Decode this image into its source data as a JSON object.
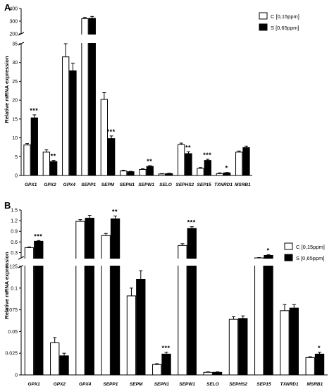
{
  "chart_data": [
    {
      "type": "bar",
      "panel_label": "A",
      "ylabel": "Relative mRNA expression",
      "categories": [
        "GPX1",
        "GPX2",
        "GPX4",
        "SEPP1",
        "SEPM",
        "SEPN1",
        "SEPW1",
        "SELO",
        "SEPHS2",
        "SEP15",
        "TXNRD1",
        "MSRB1"
      ],
      "series": [
        {
          "name": "C [0,15ppm]",
          "color": "#ffffff",
          "values": [
            8.1,
            6.2,
            31.5,
            320,
            20.2,
            1.2,
            1.6,
            0.4,
            8.2,
            1.9,
            0.5,
            6.2
          ],
          "errors": [
            0.4,
            0.6,
            3.5,
            10,
            1.8,
            0.2,
            0.2,
            0.1,
            0.4,
            0.2,
            0.2,
            0.3
          ]
        },
        {
          "name": "S [0,65ppm]",
          "color": "#000000",
          "values": [
            15.3,
            3.7,
            27.8,
            322,
            9.8,
            1.0,
            2.4,
            0.5,
            5.8,
            4.0,
            0.7,
            7.4
          ],
          "errors": [
            0.8,
            0.3,
            2.0,
            15,
            0.7,
            0.1,
            0.2,
            0.1,
            0.5,
            0.3,
            0.1,
            0.4
          ]
        }
      ],
      "significance": [
        "***",
        "**",
        "",
        "",
        "***",
        "",
        "**",
        "",
        "**",
        "***",
        "*",
        ""
      ],
      "axis_segments": [
        {
          "range": [
            0,
            35
          ],
          "ticks": [
            0,
            5,
            10,
            15,
            20,
            25,
            30,
            35
          ]
        },
        {
          "range": [
            200,
            400
          ],
          "ticks": [
            200,
            300,
            400
          ]
        }
      ],
      "legend_position": "top-right"
    },
    {
      "type": "bar",
      "panel_label": "B",
      "ylabel": "Relative mRNA expression",
      "categories": [
        "GPX1",
        "GPX2",
        "GPX4",
        "SEPP1",
        "SEPM",
        "SEPN1",
        "SEPW1",
        "SELO",
        "SEPHS2",
        "SEP15",
        "TXNRD1",
        "MSRB1"
      ],
      "series": [
        {
          "name": "C [0,15ppm]",
          "color": "#ffffff",
          "values": [
            0.44,
            0.037,
            1.18,
            0.78,
            0.091,
            0.012,
            0.5,
            0.003,
            0.064,
            0.15,
            0.074,
            0.02
          ],
          "errors": [
            0.02,
            0.006,
            0.05,
            0.06,
            0.009,
            0.001,
            0.05,
            0.0005,
            0.003,
            0.01,
            0.007,
            0.001
          ]
        },
        {
          "name": "S [0,65ppm]",
          "color": "#000000",
          "values": [
            0.62,
            0.022,
            1.27,
            1.25,
            0.11,
            0.024,
            0.98,
            0.003,
            0.065,
            0.22,
            0.077,
            0.024
          ],
          "errors": [
            0.02,
            0.003,
            0.08,
            0.08,
            0.01,
            0.002,
            0.05,
            0.0005,
            0.003,
            0.02,
            0.004,
            0.002
          ]
        }
      ],
      "significance": [
        "***",
        "",
        "",
        "**",
        "",
        "***",
        "***",
        "",
        "",
        "*",
        "",
        "*"
      ],
      "axis_segments": [
        {
          "range": [
            0,
            0.125
          ],
          "ticks": [
            0.0,
            0.025,
            0.05,
            0.075,
            0.1,
            0.125
          ]
        },
        {
          "range": [
            0.15,
            1.5
          ],
          "ticks": [
            0.3,
            0.6,
            0.9,
            1.2,
            1.5
          ]
        }
      ],
      "legend_position": "top-right"
    }
  ]
}
